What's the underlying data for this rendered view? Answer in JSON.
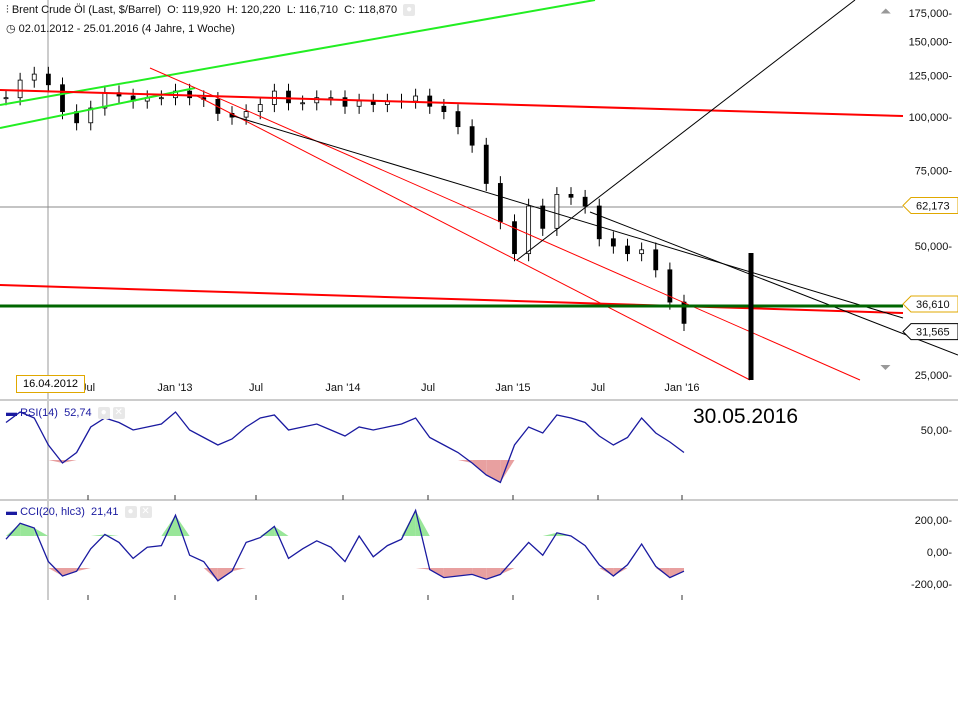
{
  "header": {
    "title": "Brent Crude Öl (Last, $/Barrel)",
    "open": "O: 119,920",
    "high": "H: 120,220",
    "low": "L: 116,710",
    "close": "C: 118,870",
    "range": "02.01.2012 - 25.01.2016 (4 Jahre, 1 Woche)"
  },
  "annotation": "30.05.2016",
  "crosshair_date": "16.04.2012",
  "chart_data": [
    {
      "type": "candlestick",
      "title": "Brent Crude Öl",
      "yscale": "log",
      "ylim": [
        25,
        175
      ],
      "yticks": [
        "175,000",
        "150,000",
        "125,000",
        "100,000",
        "75,000",
        "50,000",
        "25,000"
      ],
      "ytick_values": [
        175,
        150,
        125,
        100,
        75,
        50,
        25
      ],
      "xticks": [
        "Jul",
        "Jan '13",
        "Jul",
        "Jan '14",
        "Jul",
        "Jan '15",
        "Jul",
        "Jan '16"
      ],
      "markers": [
        {
          "label": "62,173",
          "value": 62.173,
          "color": "#e0a800"
        },
        {
          "label": "36,610",
          "value": 36.61,
          "color": "#e0a800"
        },
        {
          "label": "31,565",
          "value": 31.565,
          "color": "#000000"
        }
      ],
      "close": [
        111,
        122,
        126,
        119,
        103,
        97,
        105,
        114,
        112,
        109,
        111,
        111,
        115,
        111,
        110,
        102,
        100,
        103,
        107,
        115,
        108,
        108,
        111,
        111,
        106,
        109,
        107,
        109,
        109,
        112,
        106,
        103,
        95,
        86,
        70,
        57,
        48,
        62,
        55,
        66,
        65,
        62,
        52,
        50,
        48,
        49,
        44,
        37,
        33
      ]
    },
    {
      "type": "line",
      "title": "RSI(14)",
      "value": "52,74",
      "yticks": [
        "50,00"
      ],
      "values": [
        55,
        62,
        58,
        40,
        28,
        35,
        52,
        58,
        55,
        50,
        52,
        54,
        62,
        50,
        45,
        40,
        44,
        52,
        58,
        60,
        50,
        52,
        54,
        50,
        46,
        52,
        50,
        52,
        54,
        58,
        45,
        40,
        35,
        28,
        20,
        15,
        40,
        52,
        48,
        60,
        58,
        55,
        46,
        40,
        45,
        58,
        48,
        42,
        35
      ]
    },
    {
      "type": "line",
      "title": "CCI(20, hlc3)",
      "value": "21,41",
      "yticks": [
        "200,00",
        "0,00",
        "-200,00"
      ],
      "values": [
        80,
        180,
        150,
        -60,
        -150,
        -120,
        20,
        110,
        60,
        -40,
        30,
        40,
        230,
        -20,
        -60,
        -180,
        -120,
        60,
        90,
        160,
        -40,
        20,
        70,
        30,
        -60,
        100,
        -30,
        40,
        80,
        260,
        -110,
        -160,
        -150,
        -140,
        -170,
        -140,
        -40,
        60,
        -20,
        120,
        100,
        40,
        -80,
        -150,
        -80,
        50,
        -90,
        -160,
        -120
      ]
    }
  ],
  "colors": {
    "candle": "#000000",
    "rsi": "#1a1aa0",
    "up_fill": "#99e699",
    "down_fill": "#e8a0a0",
    "trend_red": "#ff0000",
    "trend_green": "#22ee22",
    "support": "#006600"
  }
}
